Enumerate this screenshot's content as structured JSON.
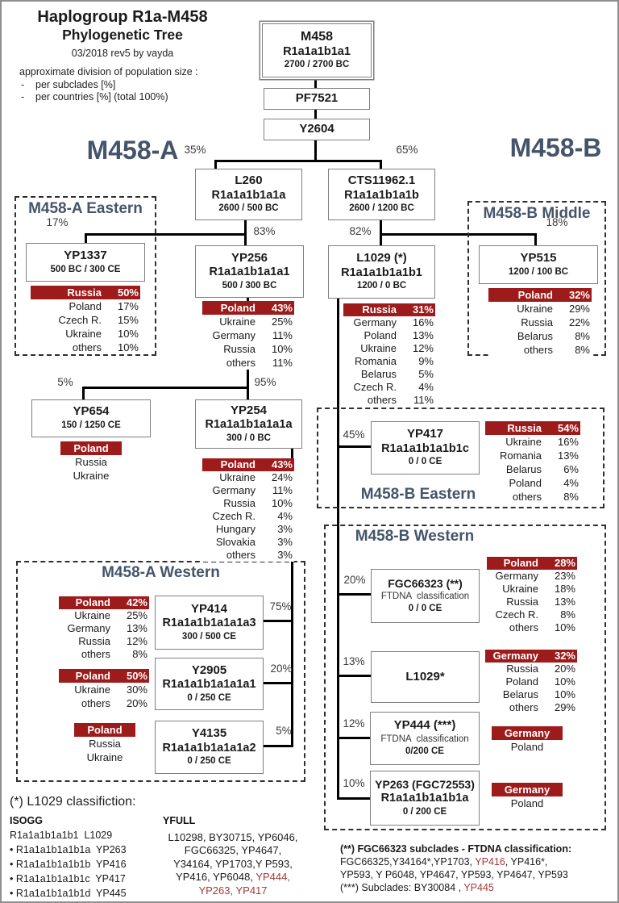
{
  "header": {
    "title_line1": "Haplogroup R1a-M458",
    "title_line2": "Phylogenetic Tree",
    "revision": "03/2018 rev5 by vayda",
    "note_title": "approximate division of population size :",
    "note_items": [
      "per subclades [%]",
      "per countries [%] (total 100%)"
    ]
  },
  "group_labels": {
    "left": "M458-A",
    "right": "M458-B"
  },
  "sections": {
    "m458a_eastern": "M458-A Eastern",
    "m458b_middle": "M458-B Middle",
    "m458a_western": "M458-A Western",
    "m458b_eastern": "M458-B Eastern",
    "m458b_western": "M458-B Western"
  },
  "nodes": {
    "m458": {
      "name": "M458",
      "sub": "R1a1a1b1a1",
      "date": "2700 / 2700 BC"
    },
    "pf7521": {
      "name": "PF7521"
    },
    "y2604": {
      "name": "Y2604"
    },
    "l260": {
      "name": "L260",
      "sub": "R1a1a1b1a1a",
      "date": "2600 / 500 BC",
      "branch_pct": "35%"
    },
    "cts11962": {
      "name": "CTS11962.1",
      "sub": "R1a1a1b1a1b",
      "date": "2600 / 1200 BC",
      "branch_pct": "65%"
    },
    "yp1337": {
      "name": "YP1337",
      "date": "500 BC / 300 CE",
      "branch_pct": "17%",
      "countries": [
        [
          "Russia",
          "50%"
        ],
        [
          "Poland",
          "17%"
        ],
        [
          "Czech R.",
          "15%"
        ],
        [
          "Ukraine",
          "10%"
        ],
        [
          "others",
          "10%"
        ]
      ]
    },
    "yp256": {
      "name": "YP256",
      "sub": "R1a1a1b1a1a1",
      "date": "500 / 300 BC",
      "branch_pct": "83%",
      "countries": [
        [
          "Poland",
          "43%"
        ],
        [
          "Ukraine",
          "25%"
        ],
        [
          "Germany",
          "11%"
        ],
        [
          "Russia",
          "10%"
        ],
        [
          "others",
          "11%"
        ]
      ]
    },
    "l1029": {
      "name": "L1029 (*)",
      "sub": "R1a1a1b1a1b1",
      "date": "1200 / 0 BC",
      "branch_pct": "82%",
      "countries": [
        [
          "Russia",
          "31%"
        ],
        [
          "Germany",
          "16%"
        ],
        [
          "Poland",
          "13%"
        ],
        [
          "Ukraine",
          "12%"
        ],
        [
          "Romania",
          "9%"
        ],
        [
          "Belarus",
          "5%"
        ],
        [
          "Czech R.",
          "4%"
        ],
        [
          "others",
          "11%"
        ]
      ]
    },
    "yp515": {
      "name": "YP515",
      "date": "1200 / 100 BC",
      "branch_pct": "18%",
      "countries": [
        [
          "Poland",
          "32%"
        ],
        [
          "Ukraine",
          "29%"
        ],
        [
          "Russia",
          "22%"
        ],
        [
          "Belarus",
          "8%"
        ],
        [
          "others",
          "8%"
        ]
      ]
    },
    "yp654": {
      "name": "YP654",
      "date": "150 / 1250 CE",
      "branch_pct": "5%",
      "countries": [
        [
          "Poland",
          ""
        ],
        [
          "Russia",
          ""
        ],
        [
          "Ukraine",
          ""
        ]
      ]
    },
    "yp254": {
      "name": "YP254",
      "sub": "R1a1a1b1a1a1a",
      "date": "300 / 0 BC",
      "branch_pct": "95%",
      "countries": [
        [
          "Poland",
          "43%"
        ],
        [
          "Ukraine",
          "24%"
        ],
        [
          "Germany",
          "11%"
        ],
        [
          "Russia",
          "10%"
        ],
        [
          "Czech R.",
          "4%"
        ],
        [
          "Hungary",
          "3%"
        ],
        [
          "Slovakia",
          "3%"
        ],
        [
          "others",
          "3%"
        ]
      ]
    },
    "yp414": {
      "name": "YP414",
      "sub": "R1a1a1b1a1a1a3",
      "date": "300 / 500 CE",
      "branch_pct": "75%",
      "countries": [
        [
          "Poland",
          "42%"
        ],
        [
          "Ukraine",
          "25%"
        ],
        [
          "Germany",
          "13%"
        ],
        [
          "Russia",
          "12%"
        ],
        [
          "others",
          "8%"
        ]
      ]
    },
    "y2905": {
      "name": "Y2905",
      "sub": "R1a1a1b1a1a1a1",
      "date": "0 / 250 CE",
      "branch_pct": "20%",
      "countries": [
        [
          "Poland",
          "50%"
        ],
        [
          "Ukraine",
          "30%"
        ],
        [
          "others",
          "20%"
        ]
      ]
    },
    "y4135": {
      "name": "Y4135",
      "sub": "R1a1a1b1a1a1a2",
      "date": "0 / 250 CE",
      "branch_pct": "5%",
      "countries": [
        [
          "Poland",
          ""
        ],
        [
          "Russia",
          ""
        ],
        [
          "Ukraine",
          ""
        ]
      ]
    },
    "yp417": {
      "name": "YP417",
      "sub": "R1a1a1b1a1b1c",
      "date": "0 / 0 CE",
      "branch_pct": "45%",
      "countries": [
        [
          "Russia",
          "54%"
        ],
        [
          "Ukraine",
          "16%"
        ],
        [
          "Romania",
          "13%"
        ],
        [
          "Belarus",
          "6%"
        ],
        [
          "Poland",
          "4%"
        ],
        [
          "others",
          "8%"
        ]
      ]
    },
    "fgc66323": {
      "name": "FGC66323 (**)",
      "note": "FTDNA  classification",
      "date": "0 / 0 CE",
      "branch_pct": "20%",
      "countries": [
        [
          "Poland",
          "28%"
        ],
        [
          "Germany",
          "23%"
        ],
        [
          "Ukraine",
          "18%"
        ],
        [
          "Russia",
          "13%"
        ],
        [
          "Czech R.",
          "8%"
        ],
        [
          "others",
          "10%"
        ]
      ]
    },
    "l1029_star": {
      "name": "L1029*",
      "branch_pct": "13%",
      "countries": [
        [
          "Germany",
          "32%"
        ],
        [
          "Russia",
          "20%"
        ],
        [
          "Poland",
          "10%"
        ],
        [
          "Belarus",
          "10%"
        ],
        [
          "others",
          "29%"
        ]
      ]
    },
    "yp444": {
      "name": "YP444 (***)",
      "note": "FTDNA  classification",
      "date": "0/200 CE",
      "branch_pct": "12%",
      "countries": [
        [
          "Germany",
          ""
        ],
        [
          "Poland",
          ""
        ]
      ]
    },
    "yp263": {
      "name": "YP263 (FGC72553)",
      "sub": "R1a1a1b1a1b1a",
      "date": "0 / 200 CE",
      "branch_pct": "10%",
      "countries": [
        [
          "Germany",
          ""
        ],
        [
          "Poland",
          ""
        ]
      ]
    }
  },
  "footnote_l1029": {
    "title": "(*) L1029 classifiction:",
    "isogg_header": "ISOGG",
    "isogg_lines": [
      "R1a1a1b1a1b1  L1029",
      "• R1a1a1b1a1b1a  YP263",
      "• R1a1a1b1a1b1b  YP416",
      "• R1a1a1b1a1b1c  YP417",
      "• R1a1a1b1a1b1d  YP445"
    ],
    "yfull_header": "YFULL",
    "yfull_lines": [
      [
        {
          "t": "L10298, BY30715, YP6046,"
        }
      ],
      [
        {
          "t": "FGC66325, YP4647,"
        }
      ],
      [
        {
          "t": "Y34164, YP1703,Y P593,"
        }
      ],
      [
        {
          "t": "YP416, YP6048, "
        },
        {
          "t": "YP444,",
          "red": true
        }
      ],
      [
        {
          "t": "YP263, YP417",
          "red": true
        }
      ]
    ]
  },
  "footnote_fgc": {
    "lines": [
      [
        {
          "t": "(**) FGC66323 subclades - FTDNA classification:",
          "b": true
        }
      ],
      [
        {
          "t": "FGC66325,Y34164*,YP1703, "
        },
        {
          "t": "YP416",
          "red": true
        },
        {
          "t": ", YP416*,"
        }
      ],
      [
        {
          "t": "YP593, Y P6048, YP4647, YP593, YP4647, YP593"
        }
      ],
      [
        {
          "t": "(***) Subclades: BY30084 , "
        },
        {
          "t": "YP445",
          "red": true
        }
      ]
    ]
  }
}
